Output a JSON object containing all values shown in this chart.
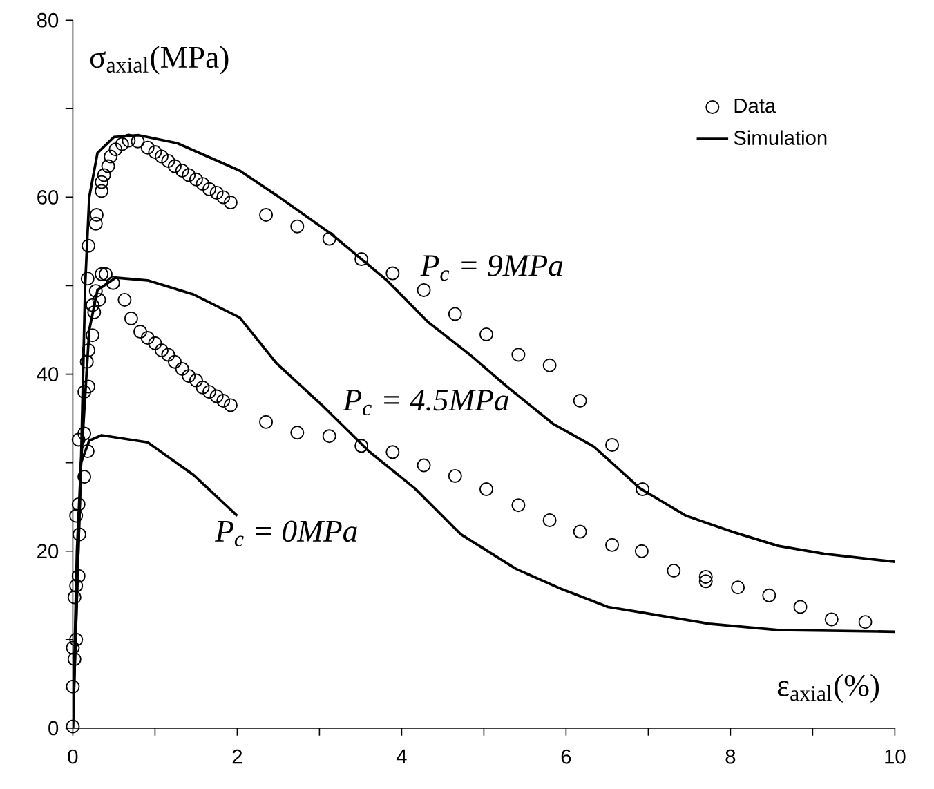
{
  "chart_data": {
    "type": "line",
    "xlabel": "ε$_{axial}$(%)",
    "ylabel": "σ$_{axial}$(MPa)",
    "xlim": [
      0,
      10
    ],
    "ylim": [
      0,
      80
    ],
    "xticks": [
      0,
      {
        "value": 1,
        "label": null
      },
      2,
      {
        "value": 3,
        "label": null
      },
      4,
      {
        "value": 5,
        "label": null
      },
      6,
      {
        "value": 7,
        "label": null
      },
      8,
      {
        "value": 9,
        "label": null
      },
      10
    ],
    "yticks": [
      0,
      {
        "value": 10,
        "label": null
      },
      20,
      {
        "value": 30,
        "label": null
      },
      40,
      {
        "value": 50,
        "label": null
      },
      60,
      {
        "value": 70,
        "label": null
      },
      80
    ],
    "grid": false,
    "legend": "top right",
    "annotations": [
      "P$_{c}$ = 9MPa",
      "P$_{c}$ = 4.5MPa",
      "P$_{c}$ = 0MPa"
    ],
    "series": [
      {
        "name": "Data",
        "type": "scatter",
        "marker": "circle",
        "color": "#000000",
        "x": [
          0,
          0,
          0.02,
          0,
          0.04,
          0.02,
          0.04,
          0.07,
          0.08,
          0.04,
          0.07,
          0.14,
          0.18,
          0.07,
          0.14,
          0.14,
          0.19,
          0.17,
          0.19,
          0.24,
          0.26,
          0.24,
          0.32,
          0.28,
          0.18,
          0.35,
          0.4,
          0.49,
          0.63,
          0.71,
          0.82,
          0.91,
          1.0,
          1.08,
          1.16,
          1.24,
          1.33,
          1.41,
          1.5,
          1.58,
          1.66,
          1.75,
          1.83,
          1.92,
          2.35,
          2.73,
          3.12,
          3.51,
          3.89,
          4.27,
          4.65,
          5.03,
          5.42,
          5.8,
          6.17,
          6.56,
          6.92,
          7.31,
          7.7,
          7.7,
          8.09,
          8.47,
          8.85,
          9.23,
          9.64,
          0.19,
          0.28,
          0.29,
          0.35,
          0.35,
          0.38,
          0.43,
          0.46,
          0.52,
          0.6,
          0.68,
          0.79,
          0.91,
          1.0,
          1.08,
          1.16,
          1.24,
          1.33,
          1.41,
          1.5,
          1.58,
          1.66,
          1.75,
          1.83,
          1.92,
          2.35,
          2.73,
          3.12,
          3.51,
          3.89,
          4.27,
          4.65,
          5.03,
          5.42,
          5.8,
          6.17,
          6.56,
          6.93
        ],
        "values": [
          0.2,
          4.7,
          7.8,
          9.1,
          10,
          14.8,
          16.1,
          17.2,
          21.9,
          24,
          25.3,
          28.4,
          31.3,
          32.6,
          33.3,
          38,
          38.6,
          41.4,
          42.7,
          44.4,
          47,
          47.8,
          48.4,
          49.4,
          50.8,
          51.3,
          51.3,
          50.3,
          48.4,
          46.3,
          44.8,
          44.1,
          43.5,
          42.7,
          42.2,
          41.4,
          40.6,
          39.8,
          39.3,
          38.5,
          38,
          37.5,
          37,
          36.5,
          34.6,
          33.4,
          33,
          31.9,
          31.2,
          29.7,
          28.5,
          27,
          25.2,
          23.5,
          22.2,
          20.7,
          20,
          17.8,
          17.1,
          16.6,
          15.9,
          15,
          13.7,
          12.3,
          12,
          54.5,
          57,
          58,
          60.7,
          61.7,
          62.5,
          63.5,
          64.6,
          65.4,
          66,
          66.4,
          66.3,
          65.6,
          65.1,
          64.6,
          64.1,
          63.5,
          63,
          62.5,
          62,
          61.5,
          60.9,
          60.5,
          60,
          59.4,
          58,
          56.7,
          55.3,
          53,
          51.4,
          49.5,
          46.8,
          44.5,
          42.2,
          41,
          37,
          32,
          27
        ]
      },
      {
        "name": "Simulation",
        "marker": "none",
        "color": "#000000",
        "x": [
          0,
          0.1,
          0.15,
          0.2,
          0.3,
          0.5,
          0.8,
          1.27,
          2.03,
          2.48,
          3.15,
          3.82,
          4.32,
          4.83,
          5.28,
          5.84,
          6.34,
          6.9,
          7.46,
          8.02,
          8.58,
          9.14,
          10
        ],
        "values": [
          0,
          30,
          50,
          60,
          65,
          66.8,
          67,
          66.1,
          63,
          60.2,
          55.8,
          50.6,
          45.9,
          42.2,
          38.6,
          34.4,
          31.8,
          27.1,
          24,
          22.2,
          20.6,
          19.7,
          18.8
        ]
      },
      {
        "marker": "none",
        "color": "#000000",
        "x": [
          0,
          0.1,
          0.2,
          0.3,
          0.52,
          0.91,
          1.47,
          2.03,
          2.48,
          3.03,
          3.6,
          4.16,
          4.72,
          5.39,
          5.95,
          6.51,
          6.9,
          7.74,
          8.58,
          10
        ],
        "values": [
          0,
          30,
          45,
          49.5,
          50.9,
          50.6,
          49,
          46.4,
          41.2,
          36.5,
          31.3,
          27.1,
          21.9,
          18,
          15.7,
          13.7,
          13.1,
          11.8,
          11.1,
          10.9
        ]
      },
      {
        "marker": "none",
        "color": "#000000",
        "x": [
          0,
          0.05,
          0.1,
          0.2,
          0.35,
          0.91,
          1.47,
          2.0
        ],
        "values": [
          0,
          20,
          30,
          32.5,
          33.1,
          32.3,
          28.6,
          24
        ]
      }
    ]
  }
}
